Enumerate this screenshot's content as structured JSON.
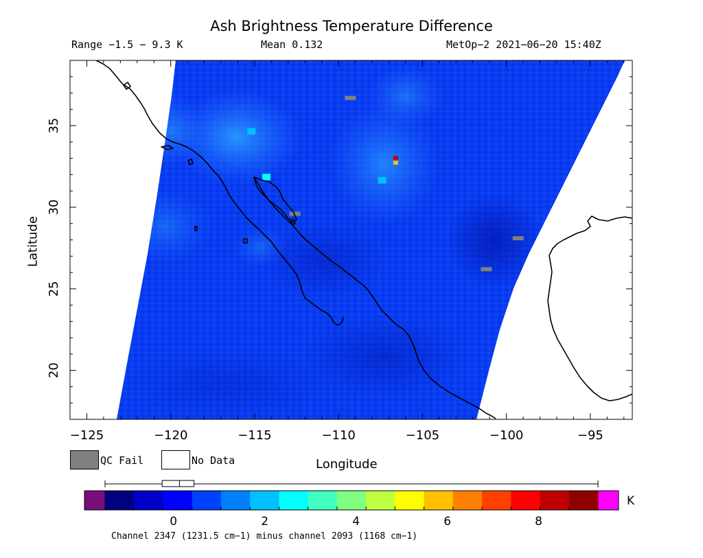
{
  "title": "Ash Brightness Temperature Difference",
  "range_text": "Range −1.5 − 9.3 K",
  "mean_text": "Mean 0.132",
  "satellite_text": "MetOp−2 2021−06−20 15:40Z",
  "xlabel": "Longitude",
  "ylabel": "Latitude",
  "x_ticks": [
    "−125",
    "−120",
    "−115",
    "−110",
    "−105",
    "−100",
    "−95"
  ],
  "y_ticks": [
    "35",
    "30",
    "25",
    "20"
  ],
  "legend": {
    "qc_fail": "QC Fail",
    "no_data": "No Data",
    "qc_fail_color": "#808080",
    "no_data_color": "#ffffff"
  },
  "colorbar": {
    "tick_labels": [
      "0",
      "2",
      "4",
      "6",
      "8"
    ],
    "unit": "K",
    "min": -1.5,
    "max": 9.3,
    "under_color": "#7a0e7a",
    "over_color": "#ff00ff",
    "colors": [
      "#000080",
      "#0000c8",
      "#0000ff",
      "#0040ff",
      "#0080ff",
      "#00c0ff",
      "#00ffff",
      "#40ffc0",
      "#80ff80",
      "#c0ff40",
      "#ffff00",
      "#ffc000",
      "#ff8000",
      "#ff4000",
      "#ff0000",
      "#c00000",
      "#900000"
    ]
  },
  "caption": "Channel 2347 (1231.5 cm−1) minus channel 2093 (1168 cm−1)",
  "chart_data": {
    "type": "heatmap",
    "title": "Ash Brightness Temperature Difference",
    "xlabel": "Longitude",
    "ylabel": "Latitude",
    "xlim": [
      -126,
      -92.5
    ],
    "ylim": [
      17,
      39
    ],
    "value_range": [
      -1.5,
      9.3
    ],
    "mean": 0.132,
    "units": "K",
    "background_value_approx": 0.1,
    "highlights": [
      {
        "lon": -115.2,
        "lat": 34.6,
        "value": 2.0
      },
      {
        "lon": -114.3,
        "lat": 31.8,
        "value": 2.5
      },
      {
        "lon": -107.4,
        "lat": 31.6,
        "value": 2.3
      },
      {
        "lon": -106.6,
        "lat": 33.0,
        "value": 8.5
      },
      {
        "lon": -106.6,
        "lat": 32.7,
        "value": 6.0
      }
    ],
    "qc_fail_points": [
      {
        "lon": -109.3,
        "lat": 36.7
      },
      {
        "lon": -112.6,
        "lat": 29.6
      },
      {
        "lon": -99.3,
        "lat": 28.1
      },
      {
        "lon": -101.2,
        "lat": 26.2
      }
    ]
  }
}
